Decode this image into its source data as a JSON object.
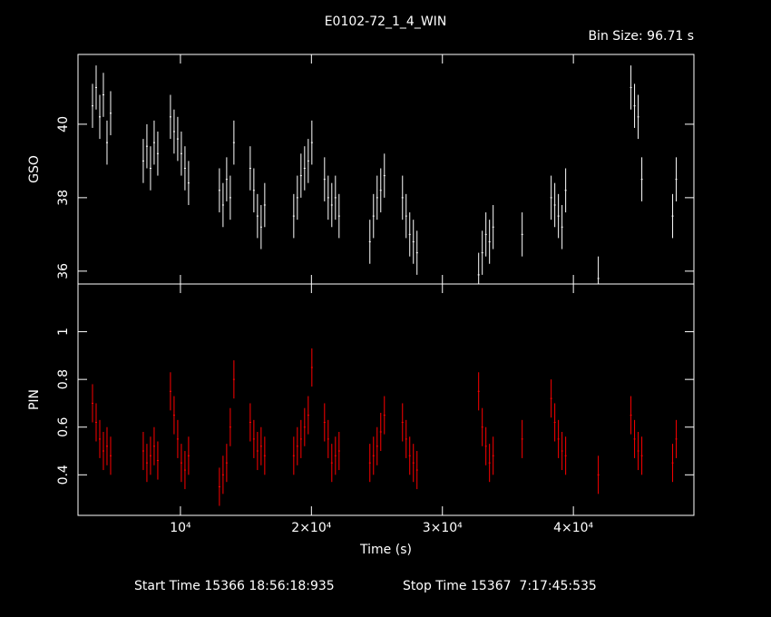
{
  "chart_data": [
    {
      "type": "errorbar",
      "title": "E0102-72_1_4_WIN",
      "subtitle": "Bin Size: 96.71 s",
      "ylabel": "GSO",
      "x": [
        3287,
        3564,
        3841,
        4117,
        4394,
        4671,
        7162,
        7439,
        7716,
        7993,
        8270,
        9238,
        9515,
        9792,
        10069,
        10346,
        10622,
        12975,
        13252,
        13529,
        13806,
        14082,
        15328,
        15605,
        15882,
        16158,
        16435,
        18650,
        18926,
        19203,
        19480,
        19757,
        20034,
        21002,
        21279,
        21556,
        21833,
        22110,
        24462,
        24739,
        25016,
        25293,
        25570,
        26954,
        27230,
        27507,
        27784,
        28061,
        32767,
        33043,
        33320,
        33597,
        33874,
        36089,
        38303,
        38580,
        38857,
        39133,
        39410,
        41902,
        44393,
        44670,
        44947,
        45224,
        47576,
        47853
      ],
      "series": [
        {
          "name": "GSO",
          "color": "#ffffff",
          "error": 0.6,
          "values": [
            40.5,
            41.0,
            40.2,
            40.8,
            39.5,
            40.3,
            39.0,
            39.4,
            38.8,
            39.5,
            39.2,
            40.2,
            39.8,
            39.6,
            39.2,
            38.8,
            38.4,
            38.2,
            37.8,
            38.5,
            38.0,
            39.5,
            38.8,
            38.2,
            37.5,
            37.2,
            37.8,
            37.5,
            38.0,
            38.6,
            38.8,
            39.0,
            39.5,
            38.5,
            38.0,
            37.8,
            38.0,
            37.5,
            36.8,
            37.5,
            38.0,
            38.2,
            38.6,
            38.0,
            37.5,
            37.0,
            36.8,
            36.5,
            35.9,
            36.5,
            37.0,
            36.8,
            37.2,
            37.0,
            38.0,
            37.8,
            37.5,
            37.2,
            38.2,
            35.8,
            41.0,
            40.5,
            40.2,
            38.5,
            37.5,
            38.5
          ]
        }
      ],
      "xlim": [
        2180,
        49200
      ],
      "ylim": [
        35.65,
        41.9
      ],
      "yticks": [
        36,
        38,
        40
      ],
      "xticks": [
        {
          "value": 10000,
          "label": "10⁴"
        },
        {
          "value": 20000,
          "label": "2×10⁴"
        },
        {
          "value": 30000,
          "label": "3×10⁴"
        },
        {
          "value": 40000,
          "label": "4×10⁴"
        }
      ]
    },
    {
      "type": "errorbar",
      "ylabel": "PIN",
      "xlabel": "Time (s)",
      "x": [
        3287,
        3564,
        3841,
        4117,
        4394,
        4671,
        7162,
        7439,
        7716,
        7993,
        8270,
        9238,
        9515,
        9792,
        10069,
        10346,
        10622,
        12975,
        13252,
        13529,
        13806,
        14082,
        15328,
        15605,
        15882,
        16158,
        16435,
        18650,
        18926,
        19203,
        19480,
        19757,
        20034,
        21002,
        21279,
        21556,
        21833,
        22110,
        24462,
        24739,
        25016,
        25293,
        25570,
        26954,
        27230,
        27507,
        27784,
        28061,
        32767,
        33043,
        33320,
        33597,
        33874,
        36089,
        38303,
        38580,
        38857,
        39133,
        39410,
        41902,
        44393,
        44670,
        44947,
        45224,
        47576,
        47853
      ],
      "series": [
        {
          "name": "PIN",
          "color": "#ff0000",
          "error": 0.08,
          "values": [
            0.7,
            0.62,
            0.55,
            0.5,
            0.52,
            0.48,
            0.5,
            0.45,
            0.48,
            0.52,
            0.46,
            0.75,
            0.65,
            0.55,
            0.45,
            0.42,
            0.48,
            0.35,
            0.4,
            0.45,
            0.6,
            0.8,
            0.62,
            0.55,
            0.5,
            0.52,
            0.48,
            0.48,
            0.52,
            0.55,
            0.6,
            0.65,
            0.85,
            0.62,
            0.55,
            0.45,
            0.48,
            0.5,
            0.45,
            0.48,
            0.52,
            0.58,
            0.65,
            0.62,
            0.55,
            0.48,
            0.45,
            0.42,
            0.75,
            0.6,
            0.52,
            0.45,
            0.48,
            0.55,
            0.72,
            0.62,
            0.55,
            0.5,
            0.48,
            0.4,
            0.65,
            0.55,
            0.5,
            0.48,
            0.45,
            0.55
          ]
        }
      ],
      "xlim": [
        2180,
        49200
      ],
      "ylim": [
        0.23,
        1.2
      ],
      "yticks": [
        0.4,
        0.6,
        0.8,
        1
      ],
      "xticks": [
        {
          "value": 10000,
          "label": "10⁴"
        },
        {
          "value": 20000,
          "label": "2×10⁴"
        },
        {
          "value": 30000,
          "label": "3×10⁴"
        },
        {
          "value": 40000,
          "label": "4×10⁴"
        }
      ]
    }
  ],
  "footer": {
    "start": "Start Time 15366 18:56:18:935",
    "stop": "Stop Time 15367  7:17:45:535"
  }
}
